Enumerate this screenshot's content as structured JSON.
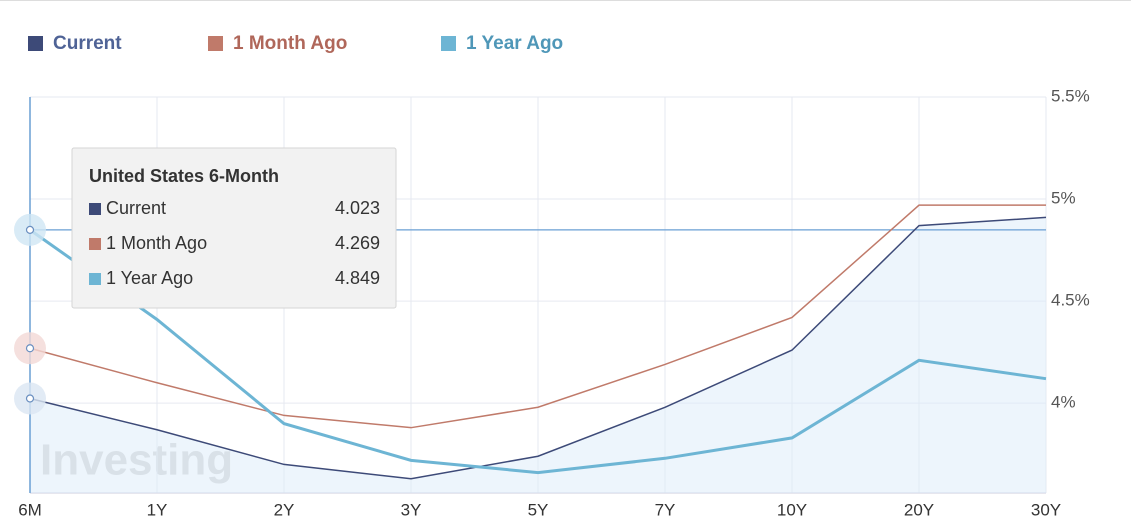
{
  "chart_data": {
    "type": "line",
    "categories": [
      "6M",
      "1Y",
      "2Y",
      "3Y",
      "5Y",
      "7Y",
      "10Y",
      "20Y",
      "30Y"
    ],
    "series": [
      {
        "name": "Current",
        "color": "#3d4a78",
        "values": [
          4.023,
          3.87,
          3.7,
          3.63,
          3.74,
          3.98,
          4.26,
          4.87,
          4.91
        ]
      },
      {
        "name": "1 Month Ago",
        "color": "#c07a6a",
        "values": [
          4.269,
          4.1,
          3.94,
          3.88,
          3.98,
          4.19,
          4.42,
          4.97,
          4.97
        ]
      },
      {
        "name": "1 Year Ago",
        "color": "#6db5d4",
        "values": [
          4.849,
          4.41,
          3.9,
          3.72,
          3.66,
          3.73,
          3.83,
          4.21,
          4.12
        ]
      }
    ],
    "ylim": [
      3.56,
      5.5
    ],
    "yticks": [
      {
        "value": 4,
        "label": "4%"
      },
      {
        "value": 4.5,
        "label": "4.5%"
      },
      {
        "value": 5,
        "label": "5%"
      },
      {
        "value": 5.5,
        "label": "5.5%"
      }
    ],
    "grid": true,
    "tooltip_title": "United States 6-Month",
    "watermark": "Investing"
  }
}
